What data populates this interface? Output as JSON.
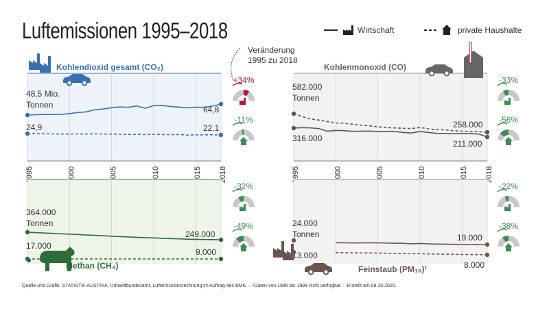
{
  "header": {
    "title": "Luftemissionen 1995–2018",
    "legend_economy": "Wirtschaft",
    "legend_households": "private Haushalte",
    "change_note": "Veränderung\n1995 zu 2018"
  },
  "footer": "Quelle und Grafik: STATISTIK AUSTRIA, Umweltbundesamt, Luftemissionsrechnung im Auftrag des BMK. – ¹Daten von 1996 bis 1999 nicht verfügbar. – Erstellt am 09.10.2020.",
  "colors": {
    "co2": "#3a6faf",
    "co": "#555555",
    "methane": "#2f6b3a",
    "pm": "#6b5550",
    "up": "#b0143c",
    "down": "#3d8c55",
    "gauge": "#c8c8c8"
  },
  "chart_data": [
    {
      "type": "line",
      "id": "co2",
      "title": "Kohlendioxid gesamt (CO₂)",
      "unit": "Mio. Tonnen",
      "x": [
        1995,
        1996,
        1997,
        1998,
        1999,
        2000,
        2001,
        2002,
        2003,
        2004,
        2005,
        2006,
        2007,
        2008,
        2009,
        2010,
        2011,
        2012,
        2013,
        2014,
        2015,
        2016,
        2017,
        2018
      ],
      "series": [
        {
          "name": "Wirtschaft",
          "values": [
            48.5,
            49.0,
            49.6,
            49.5,
            49.6,
            50.6,
            52.4,
            53.3,
            56.4,
            57.6,
            59.4,
            60.7,
            60.1,
            62.0,
            58.6,
            62.5,
            62.8,
            61.3,
            60.4,
            59.2,
            60.2,
            60.1,
            61.9,
            64.8
          ],
          "start_label": "48,5 Mio.",
          "start_label2": "Tonnen",
          "end_label": "64,8",
          "change": "+34%",
          "direction": "up"
        },
        {
          "name": "private Haushalte",
          "values": [
            24.9,
            24.8,
            24.6,
            24.2,
            24.0,
            23.8,
            24.1,
            23.9,
            24.3,
            24.0,
            23.8,
            23.5,
            23.0,
            23.2,
            22.8,
            23.6,
            22.9,
            22.7,
            22.9,
            21.9,
            22.2,
            22.3,
            22.5,
            22.1
          ],
          "start_label": "24,9",
          "end_label": "22,1",
          "change": "-11%",
          "direction": "down"
        }
      ],
      "x_ticks": [
        "1995",
        "2000",
        "2005",
        "2010",
        "2015",
        "2018"
      ]
    },
    {
      "type": "line",
      "id": "co",
      "title": "Kohlenmonoxid (CO)",
      "unit": "Tonnen",
      "x": [
        1995,
        1996,
        1997,
        1998,
        1999,
        2000,
        2001,
        2002,
        2003,
        2004,
        2005,
        2006,
        2007,
        2008,
        2009,
        2010,
        2011,
        2012,
        2013,
        2014,
        2015,
        2016,
        2017,
        2018
      ],
      "series": [
        {
          "name": "Wirtschaft",
          "values": [
            316000,
            321000,
            318000,
            311000,
            279000,
            289000,
            286000,
            278000,
            279000,
            281000,
            276000,
            277000,
            276000,
            265000,
            258000,
            276000,
            265000,
            254000,
            253000,
            249000,
            252000,
            251000,
            245000,
            211000
          ],
          "start_label": "316.000",
          "end_label": "211.000",
          "change": "-33%",
          "direction": "down"
        },
        {
          "name": "private Haushalte",
          "values": [
            582000,
            532000,
            490000,
            470000,
            445000,
            420000,
            415000,
            398000,
            382000,
            370000,
            350000,
            340000,
            333000,
            327000,
            323000,
            340000,
            318000,
            302000,
            300000,
            283000,
            276000,
            272000,
            266000,
            258000
          ],
          "start_label": "582.000",
          "start_label2": "Tonnen",
          "end_label": "258.000",
          "change": "-56%",
          "direction": "down"
        }
      ],
      "x_ticks": [
        "1995",
        "2000",
        "2005",
        "2010",
        "2015",
        "2018"
      ]
    },
    {
      "type": "line",
      "id": "methane",
      "title": "Methan (CH₄)",
      "unit": "Tonnen",
      "x": [
        1995,
        1996,
        1997,
        1998,
        1999,
        2000,
        2001,
        2002,
        2003,
        2004,
        2005,
        2006,
        2007,
        2008,
        2009,
        2010,
        2011,
        2012,
        2013,
        2014,
        2015,
        2016,
        2017,
        2018
      ],
      "series": [
        {
          "name": "Wirtschaft",
          "values": [
            364000,
            358000,
            352000,
            346000,
            340000,
            335000,
            329000,
            322000,
            316000,
            310000,
            303000,
            297000,
            291000,
            286000,
            281000,
            277000,
            272000,
            267000,
            263000,
            258000,
            255000,
            253000,
            251000,
            249000
          ],
          "start_label": "364.000",
          "start_label2": "Tonnen",
          "end_label": "249.000",
          "change": "-32%",
          "direction": "down"
        },
        {
          "name": "private Haushalte",
          "values": [
            17000,
            16800,
            16500,
            16200,
            15800,
            15400,
            14900,
            14400,
            13900,
            13300,
            12700,
            12200,
            11700,
            11300,
            10900,
            10700,
            10400,
            10200,
            10000,
            9700,
            9500,
            9300,
            9100,
            9000
          ],
          "start_label": "17.000",
          "end_label": "9.000",
          "change": "-49%",
          "direction": "down"
        }
      ],
      "x_ticks": []
    },
    {
      "type": "line",
      "id": "pm",
      "title": "Feinstaub (PM₁₀)¹",
      "unit": "Tonnen",
      "x": [
        1995,
        2000,
        2001,
        2002,
        2003,
        2004,
        2005,
        2006,
        2007,
        2008,
        2009,
        2010,
        2011,
        2012,
        2013,
        2014,
        2015,
        2016,
        2017,
        2018
      ],
      "series": [
        {
          "name": "Wirtschaft",
          "values": [
            24000,
            21200,
            21100,
            20900,
            21000,
            21100,
            21000,
            20800,
            20600,
            20500,
            19900,
            20300,
            19900,
            19600,
            19500,
            19300,
            19200,
            19200,
            19200,
            19000
          ],
          "start_label": "24.000",
          "start_label2": "Tonnen",
          "end_label": "19.000",
          "change": "-22%",
          "direction": "down"
        },
        {
          "name": "private Haushalte",
          "values": [
            13000,
            12100,
            11900,
            11700,
            11600,
            11500,
            11200,
            10900,
            10600,
            10400,
            10000,
            10100,
            9600,
            9400,
            9200,
            8900,
            8600,
            8500,
            8300,
            8000
          ],
          "start_label": "13.000",
          "end_label": "8.000",
          "change": "-38%",
          "direction": "down"
        }
      ],
      "x_ticks": []
    }
  ]
}
